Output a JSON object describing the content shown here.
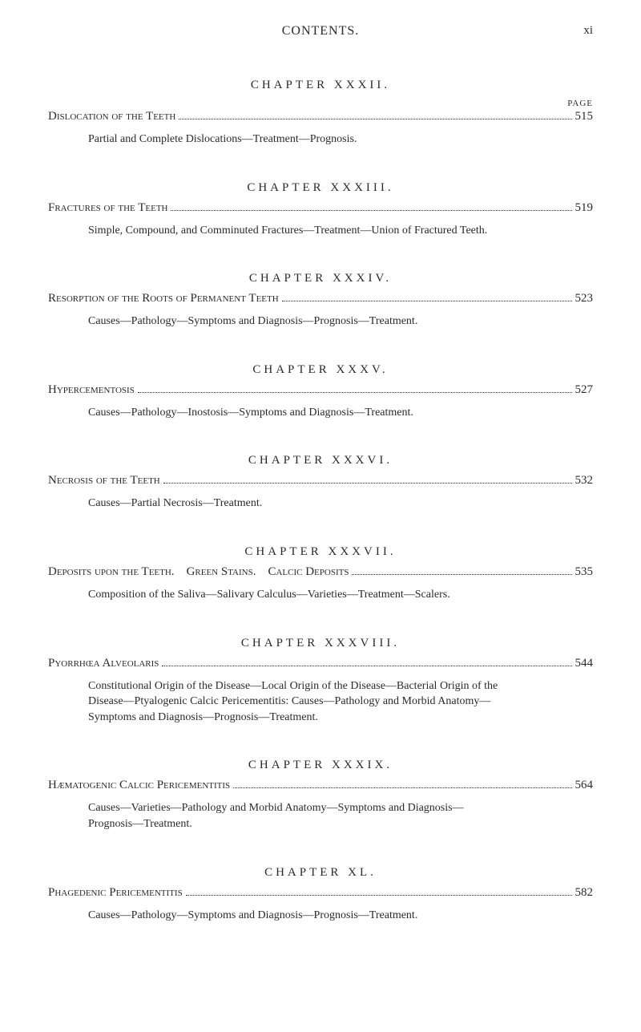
{
  "header": {
    "title": "CONTENTS.",
    "page_number": "xi",
    "page_label": "PAGE"
  },
  "chapters": [
    {
      "heading": "CHAPTER XXXII.",
      "title": "Dislocation of the Teeth",
      "page": "515",
      "description": "Partial and Complete Dislocations—Treatment—Prognosis."
    },
    {
      "heading": "CHAPTER XXXIII.",
      "title": "Fractures of the Teeth",
      "page": "519",
      "description": "Simple, Compound, and Comminuted Fractures—Treatment—Union of Fractured Teeth."
    },
    {
      "heading": "CHAPTER XXXIV.",
      "title": "Resorption of the Roots of Permanent Teeth",
      "page": "523",
      "description": "Causes—Pathology—Symptoms and Diagnosis—Prognosis—Treatment."
    },
    {
      "heading": "CHAPTER XXXV.",
      "title": "Hypercementosis",
      "page": "527",
      "description": "Causes—Pathology—Inostosis—Symptoms and Diagnosis—Treatment."
    },
    {
      "heading": "CHAPTER XXXVI.",
      "title": "Necrosis of the Teeth",
      "page": "532",
      "description": "Causes—Partial Necrosis—Treatment."
    },
    {
      "heading": "CHAPTER XXXVII.",
      "title_parts": [
        "Deposits upon the Teeth.",
        "Green Stains.",
        "Calcic Deposits"
      ],
      "page": "535",
      "description": "Composition of the Saliva—Salivary Calculus—Varieties—Treatment—Scalers."
    },
    {
      "heading": "CHAPTER XXXVIII.",
      "title": "Pyorrhœa Alveolaris",
      "page": "544",
      "description": "Constitutional Origin of the Disease—Local Origin of the Disease—Bacterial Origin of the Disease—Ptyalogenic Calcic Pericementitis: Causes—Pathology and Morbid Anatomy—Symptoms and Diagnosis—Prognosis—Treatment."
    },
    {
      "heading": "CHAPTER XXXIX.",
      "title": "Hæmatogenic Calcic Pericementitis",
      "page": "564",
      "description": "Causes—Varieties—Pathology and Morbid Anatomy—Symptoms and Diagnosis—Prognosis—Treatment."
    },
    {
      "heading": "CHAPTER XL.",
      "title": "Phagedenic Pericementitis",
      "page": "582",
      "description": "Causes—Pathology—Symptoms and Diagnosis—Prognosis—Treatment."
    }
  ]
}
